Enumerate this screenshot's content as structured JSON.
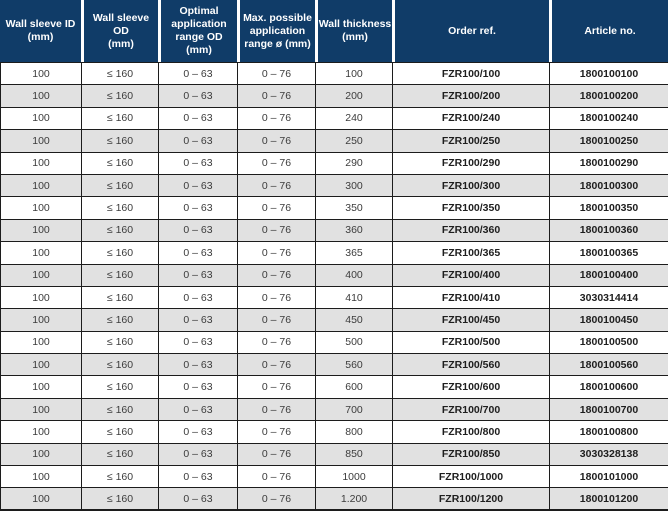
{
  "table": {
    "headers": [
      {
        "id": "wall-sleeve-id",
        "label": "Wall sleeve ID\n(mm)"
      },
      {
        "id": "wall-sleeve-od",
        "label": "Wall sleeve OD\n(mm)"
      },
      {
        "id": "optimal-range",
        "label": "Optimal\napplication\nrange OD\n(mm)"
      },
      {
        "id": "max-range",
        "label": "Max. possible\napplication\nrange ø (mm)"
      },
      {
        "id": "wall-thickness",
        "label": "Wall thickness\n(mm)"
      },
      {
        "id": "order-ref",
        "label": "Order ref."
      },
      {
        "id": "article-no",
        "label": "Article no."
      }
    ],
    "bold_columns": [
      5,
      6
    ],
    "rows": [
      [
        "100",
        "≤ 160",
        "0 – 63",
        "0 – 76",
        "100",
        "FZR100/100",
        "1800100100"
      ],
      [
        "100",
        "≤ 160",
        "0 – 63",
        "0 – 76",
        "200",
        "FZR100/200",
        "1800100200"
      ],
      [
        "100",
        "≤ 160",
        "0 – 63",
        "0 – 76",
        "240",
        "FZR100/240",
        "1800100240"
      ],
      [
        "100",
        "≤ 160",
        "0 – 63",
        "0 – 76",
        "250",
        "FZR100/250",
        "1800100250"
      ],
      [
        "100",
        "≤ 160",
        "0 – 63",
        "0 – 76",
        "290",
        "FZR100/290",
        "1800100290"
      ],
      [
        "100",
        "≤ 160",
        "0 – 63",
        "0 – 76",
        "300",
        "FZR100/300",
        "1800100300"
      ],
      [
        "100",
        "≤ 160",
        "0 – 63",
        "0 – 76",
        "350",
        "FZR100/350",
        "1800100350"
      ],
      [
        "100",
        "≤ 160",
        "0 – 63",
        "0 – 76",
        "360",
        "FZR100/360",
        "1800100360"
      ],
      [
        "100",
        "≤ 160",
        "0 – 63",
        "0 – 76",
        "365",
        "FZR100/365",
        "1800100365"
      ],
      [
        "100",
        "≤ 160",
        "0 – 63",
        "0 – 76",
        "400",
        "FZR100/400",
        "1800100400"
      ],
      [
        "100",
        "≤ 160",
        "0 – 63",
        "0 – 76",
        "410",
        "FZR100/410",
        "3030314414"
      ],
      [
        "100",
        "≤ 160",
        "0 – 63",
        "0 – 76",
        "450",
        "FZR100/450",
        "1800100450"
      ],
      [
        "100",
        "≤ 160",
        "0 – 63",
        "0 – 76",
        "500",
        "FZR100/500",
        "1800100500"
      ],
      [
        "100",
        "≤ 160",
        "0 – 63",
        "0 – 76",
        "560",
        "FZR100/560",
        "1800100560"
      ],
      [
        "100",
        "≤ 160",
        "0 – 63",
        "0 – 76",
        "600",
        "FZR100/600",
        "1800100600"
      ],
      [
        "100",
        "≤ 160",
        "0 – 63",
        "0 – 76",
        "700",
        "FZR100/700",
        "1800100700"
      ],
      [
        "100",
        "≤ 160",
        "0 – 63",
        "0 – 76",
        "800",
        "FZR100/800",
        "1800100800"
      ],
      [
        "100",
        "≤ 160",
        "0 – 63",
        "0 – 76",
        "850",
        "FZR100/850",
        "3030328138"
      ],
      [
        "100",
        "≤ 160",
        "0 – 63",
        "0 – 76",
        "1000",
        "FZR100/1000",
        "1800101000"
      ],
      [
        "100",
        "≤ 160",
        "0 – 63",
        "0 – 76",
        "1.200",
        "FZR100/1200",
        "1800101200"
      ]
    ]
  },
  "colors": {
    "header_bg": "#103c68",
    "header_text": "#ffffff",
    "row_bg": "#ffffff",
    "row_alt_bg": "#e1e1e1",
    "border": "#1c1c1c",
    "text": "#3c3c3c",
    "bold_text": "#1e1e1e"
  }
}
